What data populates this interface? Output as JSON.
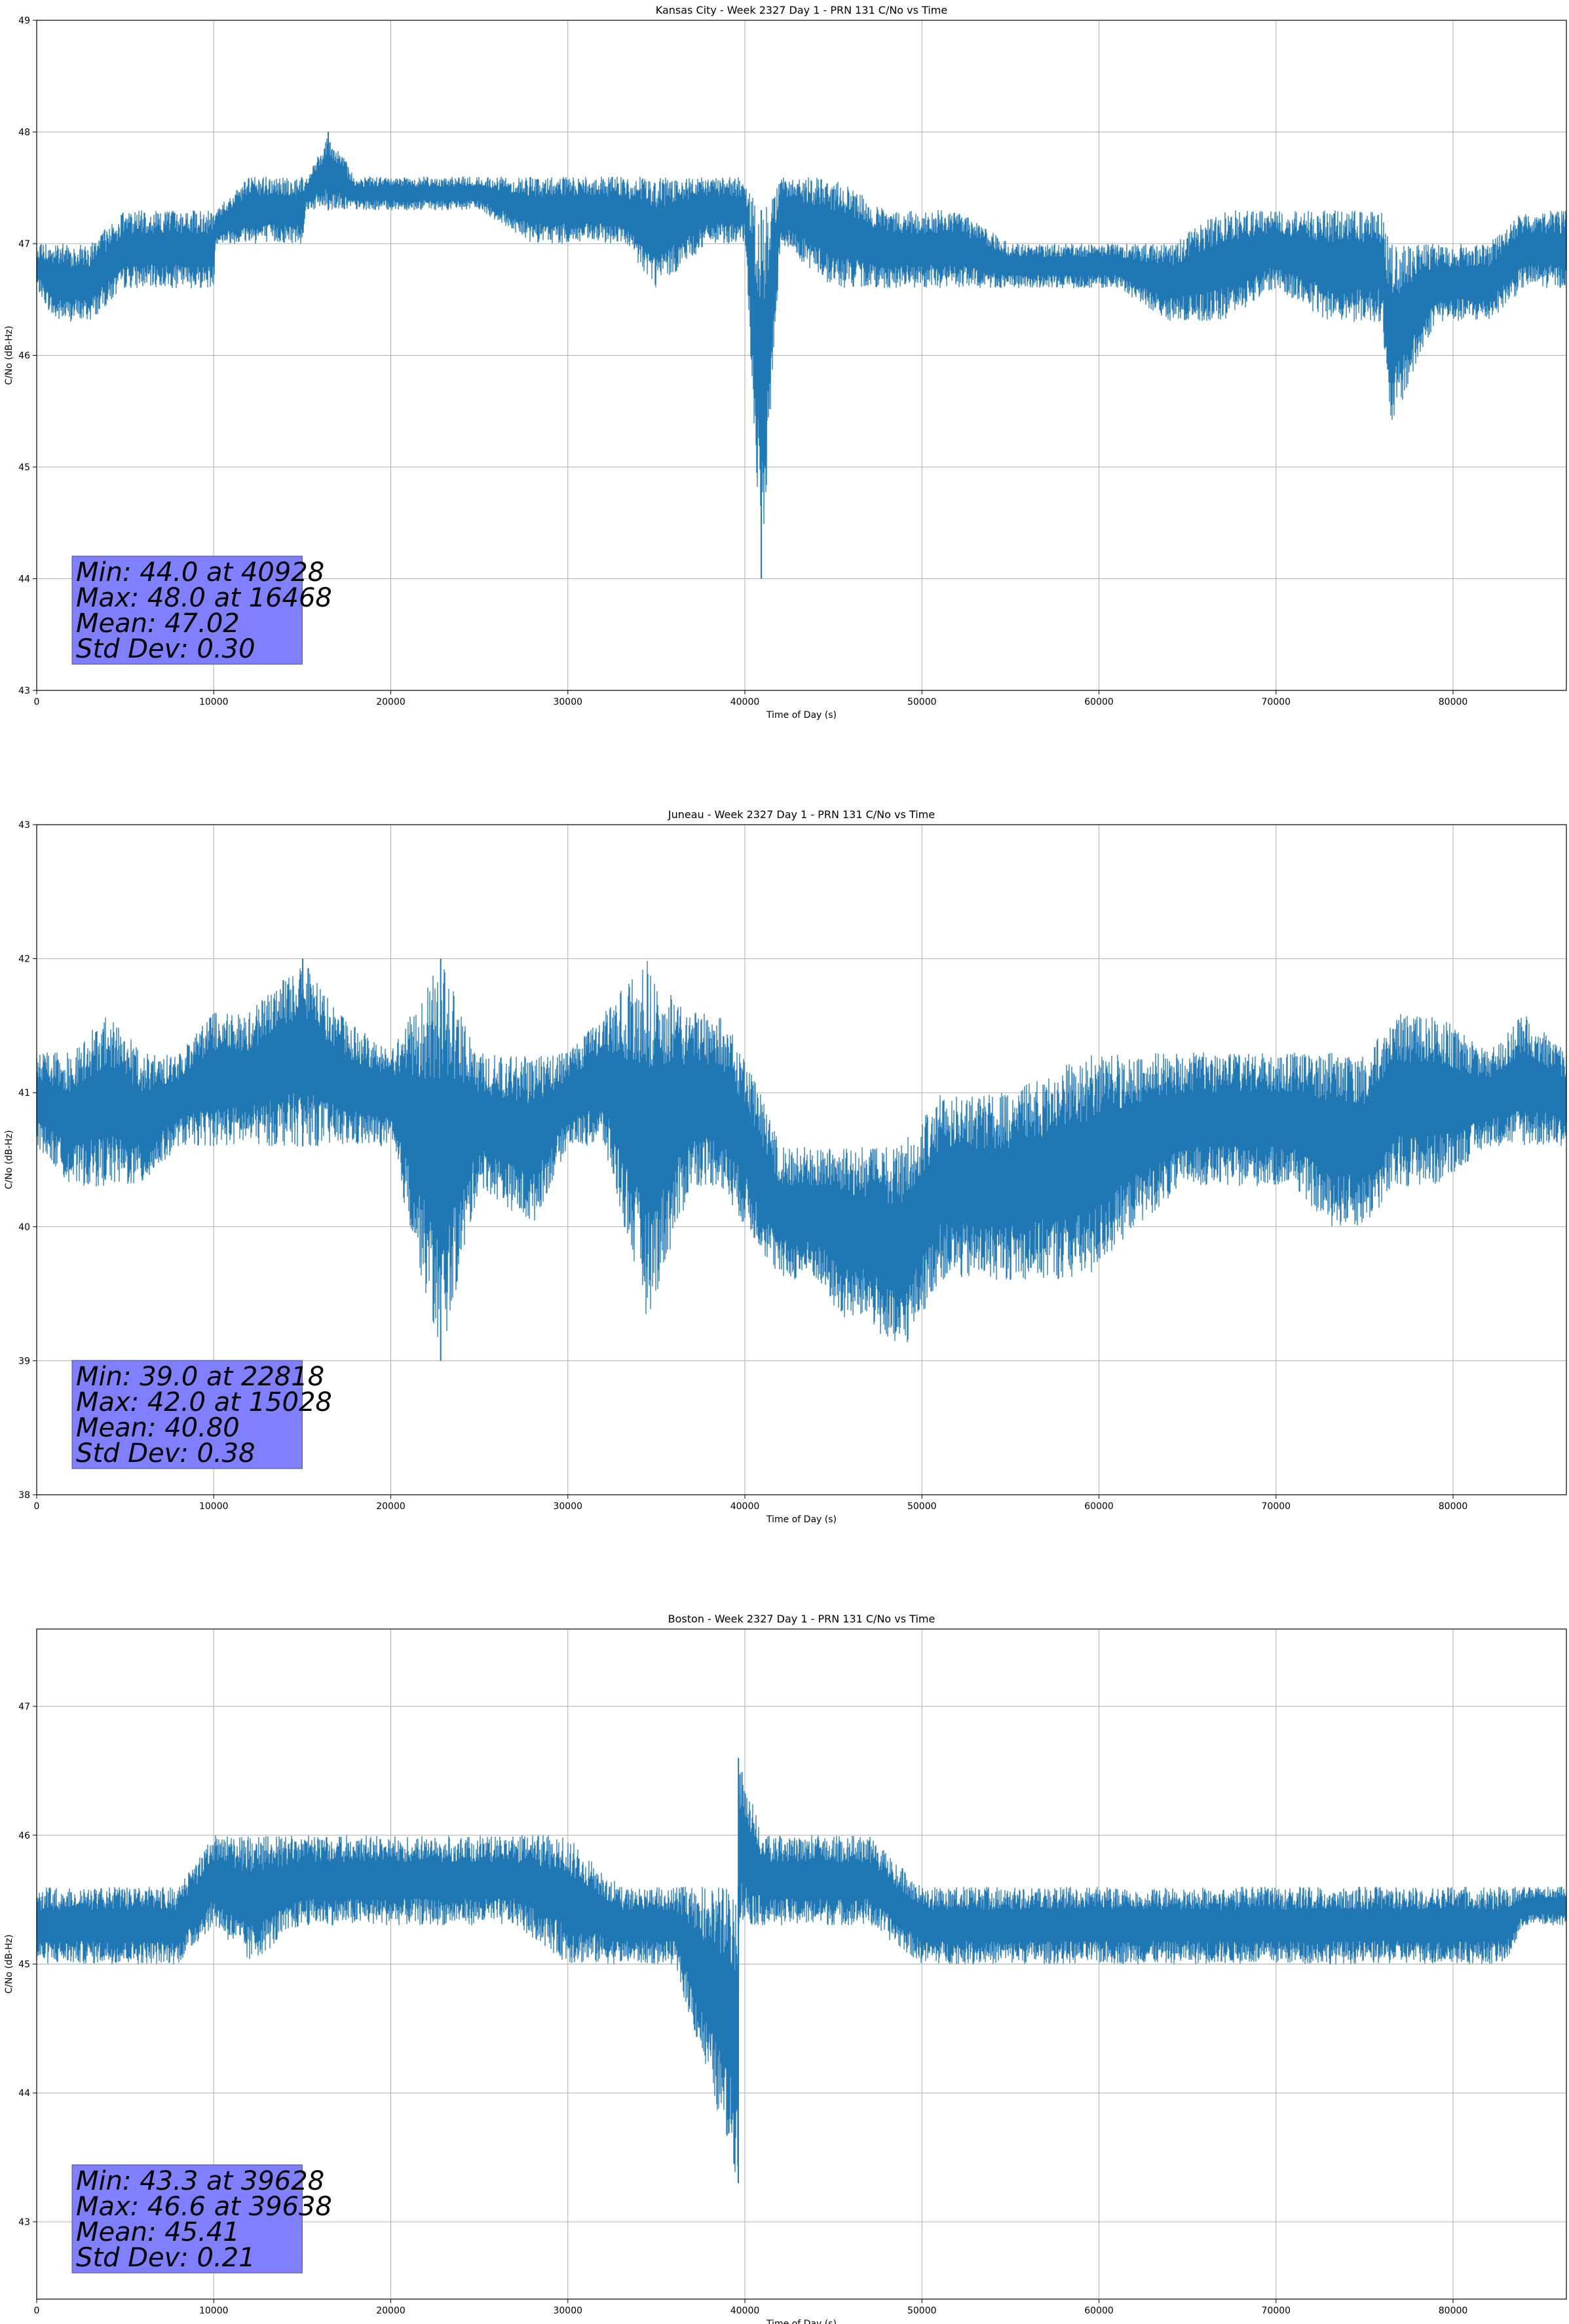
{
  "colors": {
    "series": "#1f77b4",
    "grid": "#b0b0b0",
    "stats_box": "#8080ff"
  },
  "chart_data": [
    {
      "type": "line",
      "title": "Kansas City - Week 2327 Day 1 - PRN 131 C/No vs Time",
      "xlabel": "Time of Day (s)",
      "ylabel": "C/No (dB-Hz)",
      "xlim": [
        0,
        86400
      ],
      "ylim": [
        43,
        49
      ],
      "xticks": [
        0,
        10000,
        20000,
        30000,
        40000,
        50000,
        60000,
        70000,
        80000
      ],
      "yticks": [
        43,
        44,
        45,
        46,
        47,
        48,
        49
      ],
      "grid": true,
      "stats": [
        "Min: 44.0 at 40928",
        "Max: 48.0 at 16468",
        "Mean: 47.02",
        "Std Dev: 0.30"
      ],
      "series": [
        {
          "x": [
            0,
            1000,
            3000,
            5000,
            6000,
            8000,
            10000,
            10100,
            12000,
            15000,
            15200,
            16468,
            18000,
            22000,
            25000,
            28000,
            30000,
            33000,
            35000,
            38000,
            40000,
            40928,
            42000,
            45000,
            48000,
            50000,
            52000,
            55000,
            58000,
            61000,
            64000,
            67000,
            70000,
            73000,
            76000,
            76400,
            79000,
            82000,
            84000,
            86400
          ],
          "y_min": [
            46.6,
            46.3,
            46.3,
            46.6,
            46.6,
            46.6,
            46.6,
            47.0,
            47.0,
            47.0,
            47.3,
            47.3,
            47.3,
            47.3,
            47.3,
            47.0,
            47.0,
            47.0,
            46.6,
            47.0,
            47.0,
            44.0,
            47.0,
            46.6,
            46.6,
            46.6,
            46.6,
            46.6,
            46.6,
            46.6,
            46.3,
            46.3,
            46.6,
            46.3,
            46.3,
            45.3,
            46.3,
            46.3,
            46.6,
            46.6
          ],
          "y_max": [
            47.0,
            47.0,
            47.0,
            47.3,
            47.3,
            47.3,
            47.3,
            47.3,
            47.6,
            47.6,
            47.6,
            48.0,
            47.6,
            47.6,
            47.6,
            47.6,
            47.6,
            47.6,
            47.6,
            47.6,
            47.6,
            47.3,
            47.6,
            47.6,
            47.3,
            47.3,
            47.3,
            47.0,
            47.0,
            47.0,
            47.0,
            47.3,
            47.3,
            47.3,
            47.3,
            47.0,
            47.0,
            47.0,
            47.3,
            47.3
          ]
        }
      ]
    },
    {
      "type": "line",
      "title": "Juneau - Week 2327 Day 1 - PRN 131 C/No vs Time",
      "xlabel": "Time of Day (s)",
      "ylabel": "C/No (dB-Hz)",
      "xlim": [
        0,
        86400
      ],
      "ylim": [
        38,
        43
      ],
      "xticks": [
        0,
        10000,
        20000,
        30000,
        40000,
        50000,
        60000,
        70000,
        80000
      ],
      "yticks": [
        38,
        39,
        40,
        41,
        42,
        43
      ],
      "grid": true,
      "stats": [
        "Min: 39.0 at 22818",
        "Max: 42.0 at 15028",
        "Mean: 40.80",
        "Std Dev: 0.38"
      ],
      "series": [
        {
          "x": [
            0,
            2000,
            4000,
            6000,
            8000,
            10000,
            12000,
            15028,
            17000,
            20000,
            22818,
            25000,
            28000,
            30000,
            32000,
            34500,
            37000,
            38500,
            40000,
            42000,
            44000,
            45500,
            47000,
            48700,
            51000,
            55000,
            59400,
            62000,
            65000,
            68000,
            71000,
            73000,
            75000,
            77000,
            79000,
            82000,
            84000,
            86400
          ],
          "y_min": [
            40.6,
            40.3,
            40.3,
            40.3,
            40.6,
            40.6,
            40.6,
            40.6,
            40.6,
            40.6,
            39.0,
            40.3,
            40.0,
            40.6,
            40.6,
            39.3,
            40.3,
            40.3,
            40.0,
            39.6,
            39.6,
            39.3,
            39.3,
            39.0,
            39.6,
            39.6,
            39.6,
            40.0,
            40.3,
            40.3,
            40.3,
            40.0,
            40.0,
            40.3,
            40.3,
            40.6,
            40.6,
            40.6
          ],
          "y_max": [
            41.3,
            41.3,
            41.6,
            41.3,
            41.3,
            41.6,
            41.6,
            42.0,
            41.6,
            41.3,
            42.0,
            41.3,
            41.3,
            41.3,
            41.6,
            42.0,
            41.6,
            41.6,
            41.3,
            40.6,
            40.6,
            40.6,
            40.6,
            40.6,
            41.0,
            41.0,
            41.3,
            41.3,
            41.3,
            41.3,
            41.3,
            41.3,
            41.3,
            41.6,
            41.6,
            41.3,
            41.6,
            41.3
          ]
        }
      ]
    },
    {
      "type": "line",
      "title": "Boston - Week 2327 Day 1 - PRN 131 C/No vs Time",
      "xlabel": "Time of Day (s)",
      "ylabel": "C/No (dB-Hz)",
      "xlim": [
        0,
        86400
      ],
      "ylim": [
        42.4,
        47.6
      ],
      "xticks": [
        0,
        10000,
        20000,
        30000,
        40000,
        50000,
        60000,
        70000,
        80000
      ],
      "yticks": [
        43,
        44,
        45,
        46,
        47
      ],
      "grid": true,
      "stats": [
        "Min: 43.3 at 39628",
        "Max: 46.6 at 39638",
        "Mean: 45.41",
        "Std Dev: 0.21"
      ],
      "series": [
        {
          "x": [
            0,
            2000,
            4000,
            6000,
            8000,
            10000,
            12000,
            15000,
            18000,
            21000,
            24000,
            27000,
            30000,
            33000,
            36000,
            39628,
            39638,
            41000,
            44000,
            47000,
            50000,
            53000,
            56000,
            59000,
            62000,
            65000,
            68000,
            71000,
            74000,
            77000,
            80000,
            83000,
            84000,
            86400
          ],
          "y_min": [
            45.0,
            45.0,
            45.0,
            45.0,
            45.0,
            45.3,
            45.0,
            45.3,
            45.3,
            45.3,
            45.3,
            45.3,
            45.0,
            45.0,
            45.0,
            43.3,
            45.3,
            45.3,
            45.3,
            45.3,
            45.0,
            45.0,
            45.0,
            45.0,
            45.0,
            45.0,
            45.0,
            45.0,
            45.0,
            45.0,
            45.0,
            45.0,
            45.3,
            45.3
          ],
          "y_max": [
            45.6,
            45.6,
            45.6,
            45.6,
            45.6,
            46.0,
            46.0,
            46.0,
            46.0,
            46.0,
            46.0,
            46.0,
            46.0,
            45.6,
            45.6,
            45.6,
            46.6,
            46.0,
            46.0,
            46.0,
            45.6,
            45.6,
            45.6,
            45.6,
            45.6,
            45.6,
            45.6,
            45.6,
            45.6,
            45.6,
            45.6,
            45.6,
            45.6,
            45.6
          ]
        }
      ]
    }
  ]
}
